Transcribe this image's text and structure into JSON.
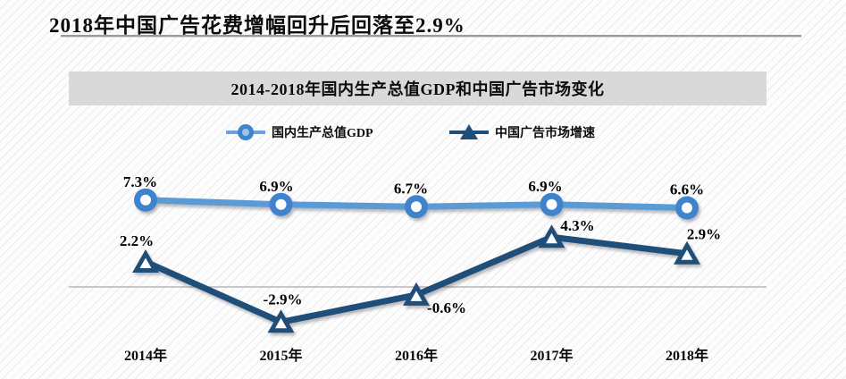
{
  "page": {
    "title": "2018年中国广告花费增幅回升后回落至2.9%"
  },
  "chart": {
    "banner_title": "2014-2018年国内生产总值GDP和中国广告市场变化",
    "legend": [
      {
        "label": "国内生产总值GDP",
        "marker": "circle",
        "color": "#3f83cc"
      },
      {
        "label": "中国广告市场增速",
        "marker": "triangle",
        "color": "#1f4e79"
      }
    ]
  },
  "chart_data": {
    "type": "line",
    "title": "2014-2018年国内生产总值GDP和中国广告市场变化",
    "categories": [
      "2014年",
      "2015年",
      "2016年",
      "2017年",
      "2018年"
    ],
    "series": [
      {
        "name": "国内生产总值GDP",
        "values": [
          7.3,
          6.9,
          6.7,
          6.9,
          6.6
        ],
        "labels": [
          "7.3%",
          "6.9%",
          "6.7%",
          "6.9%",
          "6.6%"
        ],
        "label_offsets": [
          [
            -6,
            -15
          ],
          [
            -5,
            -15
          ],
          [
            -6,
            -15
          ],
          [
            -7,
            -15
          ],
          [
            0,
            -15
          ]
        ],
        "marker": "circle",
        "line_color": "#5b9bd5",
        "marker_color": "#3f83cc"
      },
      {
        "name": "中国广告市场增速",
        "values": [
          2.2,
          -2.9,
          -0.6,
          4.3,
          2.9
        ],
        "labels": [
          "2.2%",
          "-2.9%",
          "-0.6%",
          "4.3%",
          "2.9%"
        ],
        "label_offsets": [
          [
            -10,
            -18
          ],
          [
            2,
            -20
          ],
          [
            34,
            20
          ],
          [
            29,
            -7
          ],
          [
            19,
            -16
          ]
        ],
        "marker": "triangle",
        "line_color": "#1f4e79",
        "marker_color": "#1f4e79"
      }
    ],
    "legend_position": "top",
    "grid": "zero-baseline-only",
    "axes_visible": false,
    "zero_line_color": "#a9a9a9",
    "label_text_color": "#000000"
  }
}
